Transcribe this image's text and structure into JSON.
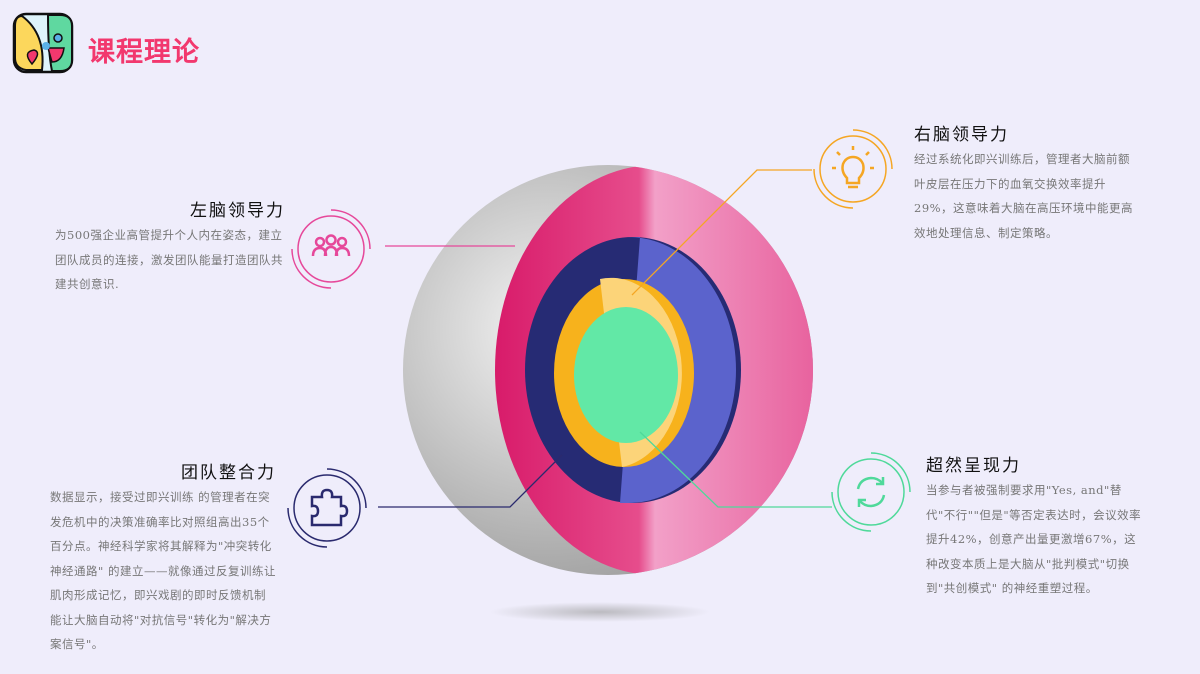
{
  "header": {
    "title": "课程理论"
  },
  "sections": [
    {
      "title": "左脑领导力",
      "body": "为500强企业高管提升个人内在姿态，建立团队成员的连接，激发团队能量打造团队共建共创意识.",
      "icon": "people-icon",
      "color": "#e6489a"
    },
    {
      "title": "右脑领导力",
      "body": "经过系统化即兴训练后，管理者大脑前额叶皮层在压力下的血氧交换效率提升29%，这意味着大脑在高压环境中能更高效地处理信息、制定策略。",
      "icon": "lightbulb-icon",
      "color": "#f5a623"
    },
    {
      "title": "团队整合力",
      "body": "数据显示，接受过即兴训练 的管理者在突发危机中的决策准确率比对照组高出35个百分点。神经科学家将其解释为\"冲突转化神经通路\" 的建立——就像通过反复训练让肌肉形成记忆，即兴戏剧的即时反馈机制能让大脑自动将\"对抗信号\"转化为\"解决方案信号\"。",
      "icon": "puzzle-icon",
      "color": "#2a2a6e"
    },
    {
      "title": "超然呈现力",
      "body": "当参与者被强制要求用\"Yes, and\"替代\"不行\"\"但是\"等否定表达时，会议效率提升42%，创意产出量更激增67%，这种改变本质上是大脑从\"批判模式\"切换到\"共创模式\" 的神经重塑过程。",
      "icon": "refresh-icon",
      "color": "#4fd99a"
    }
  ]
}
